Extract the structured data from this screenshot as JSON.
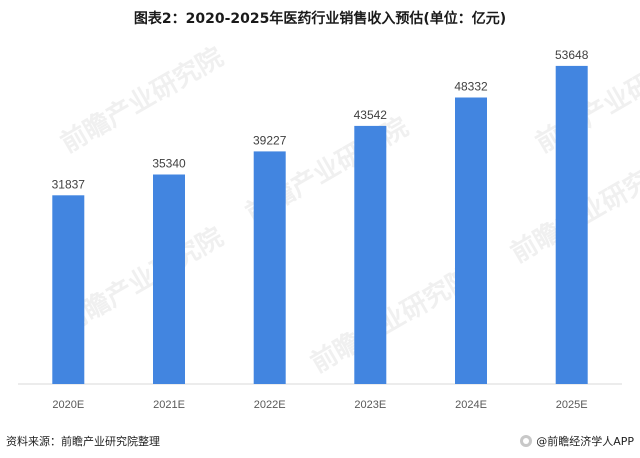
{
  "title": "图表2：2020-2025年医药行业销售收入预估(单位：亿元)",
  "chart_data": {
    "type": "bar",
    "categories": [
      "2020E",
      "2021E",
      "2022E",
      "2023E",
      "2024E",
      "2025E"
    ],
    "values": [
      31837,
      35340,
      39227,
      43542,
      48332,
      53648
    ],
    "ylim": [
      0,
      56000
    ],
    "bar_color": "#4285e0",
    "grid": false,
    "legend": "none"
  },
  "footer": {
    "source": "资料来源：前瞻产业研究院整理",
    "brand": "@前瞻经济学人APP"
  },
  "watermark": "前瞻产业研究院",
  "colors": {
    "bar": "#4285e0",
    "axis": "#d9d9d9",
    "watermark": "#aaaaaa"
  }
}
